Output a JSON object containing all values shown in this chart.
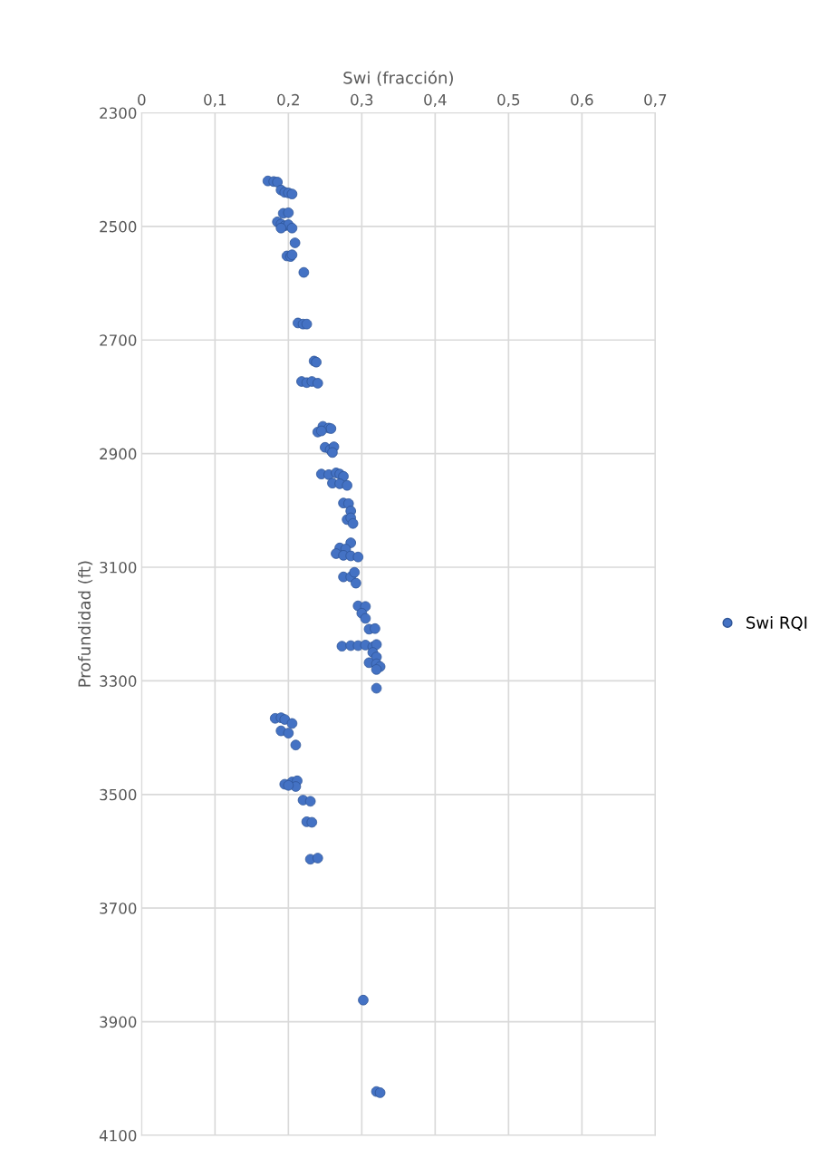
{
  "chart_data": {
    "type": "scatter",
    "xlabel": "Swi (fracción)",
    "ylabel": "Profundidad (ft)",
    "xlim": [
      0,
      0.7
    ],
    "xticks": [
      {
        "value": 0,
        "label": "0"
      },
      {
        "value": 0.1,
        "label": "0,1"
      },
      {
        "value": 0.2,
        "label": "0,2"
      },
      {
        "value": 0.3,
        "label": "0,3"
      },
      {
        "value": 0.4,
        "label": "0,4"
      },
      {
        "value": 0.5,
        "label": "0,5"
      },
      {
        "value": 0.6,
        "label": "0,6"
      },
      {
        "value": 0.7,
        "label": "0,7"
      }
    ],
    "ylim": [
      4100,
      2300
    ],
    "yticks": [
      2300,
      2500,
      2700,
      2900,
      3100,
      3300,
      3500,
      3700,
      3900,
      4100
    ],
    "grid": true,
    "legend": "right",
    "marker": "circle",
    "series": [
      {
        "name": "Swi RQI",
        "color": "#4472c4",
        "x": [
          0.172,
          0.18,
          0.185,
          0.19,
          0.195,
          0.2,
          0.205,
          0.193,
          0.2,
          0.185,
          0.19,
          0.195,
          0.2,
          0.205,
          0.19,
          0.209,
          0.198,
          0.203,
          0.205,
          0.221,
          0.213,
          0.22,
          0.225,
          0.235,
          0.238,
          0.218,
          0.225,
          0.232,
          0.24,
          0.247,
          0.255,
          0.258,
          0.24,
          0.245,
          0.25,
          0.257,
          0.262,
          0.26,
          0.245,
          0.255,
          0.265,
          0.27,
          0.275,
          0.26,
          0.27,
          0.28,
          0.275,
          0.282,
          0.285,
          0.28,
          0.285,
          0.288,
          0.285,
          0.27,
          0.278,
          0.265,
          0.275,
          0.285,
          0.295,
          0.275,
          0.285,
          0.29,
          0.292,
          0.295,
          0.305,
          0.3,
          0.305,
          0.31,
          0.318,
          0.273,
          0.285,
          0.295,
          0.305,
          0.315,
          0.32,
          0.315,
          0.32,
          0.31,
          0.32,
          0.325,
          0.32,
          0.32,
          0.182,
          0.19,
          0.195,
          0.205,
          0.19,
          0.2,
          0.21,
          0.195,
          0.205,
          0.212,
          0.21,
          0.2,
          0.22,
          0.23,
          0.225,
          0.232,
          0.23,
          0.24,
          0.302,
          0.32,
          0.325
        ],
        "values": [
          2420,
          2421,
          2422,
          2436,
          2440,
          2441,
          2443,
          2477,
          2476,
          2492,
          2496,
          2499,
          2497,
          2503,
          2503,
          2529,
          2552,
          2553,
          2550,
          2581,
          2670,
          2672,
          2672,
          2737,
          2739,
          2773,
          2775,
          2773,
          2776,
          2852,
          2855,
          2856,
          2862,
          2860,
          2889,
          2893,
          2888,
          2898,
          2936,
          2937,
          2934,
          2936,
          2940,
          2952,
          2953,
          2956,
          2987,
          2988,
          3001,
          3016,
          3013,
          3023,
          3057,
          3066,
          3068,
          3076,
          3079,
          3080,
          3082,
          3117,
          3117,
          3109,
          3128,
          3168,
          3169,
          3181,
          3190,
          3209,
          3208,
          3239,
          3238,
          3238,
          3237,
          3240,
          3236,
          3250,
          3258,
          3268,
          3270,
          3275,
          3280,
          3313,
          3366,
          3365,
          3368,
          3375,
          3388,
          3392,
          3413,
          3482,
          3478,
          3476,
          3486,
          3484,
          3510,
          3512,
          3548,
          3549,
          3614,
          3612,
          3862,
          4023,
          4025
        ]
      }
    ]
  }
}
